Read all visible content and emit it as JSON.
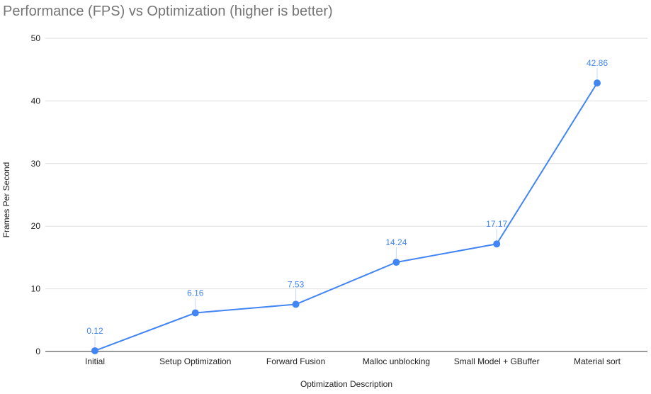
{
  "chart_data": {
    "type": "line",
    "title": "Performance (FPS) vs Optimization (higher is better)",
    "xlabel": "Optimization Description",
    "ylabel": "Frames Per Second",
    "categories": [
      "Initial",
      "Setup Optimization",
      "Forward Fusion",
      "Malloc unblocking",
      "Small Model + GBuffer",
      "Material sort"
    ],
    "series": [
      {
        "values": [
          0.12,
          6.16,
          7.53,
          14.24,
          17.17,
          42.86
        ],
        "data_labels": [
          "0.12",
          "6.16",
          "7.53",
          "14.24",
          "17.17",
          "42.86"
        ],
        "color": "#4285f4"
      }
    ],
    "ylim": [
      0,
      50
    ],
    "yticks": [
      0,
      10,
      20,
      30,
      40,
      50
    ],
    "ytick_labels": [
      "0",
      "10",
      "20",
      "30",
      "40",
      "50"
    ],
    "grid": true,
    "legend": "none"
  },
  "colors": {
    "gridline": "#dddddd",
    "baseline": "#333333",
    "series": "#4285f4"
  }
}
